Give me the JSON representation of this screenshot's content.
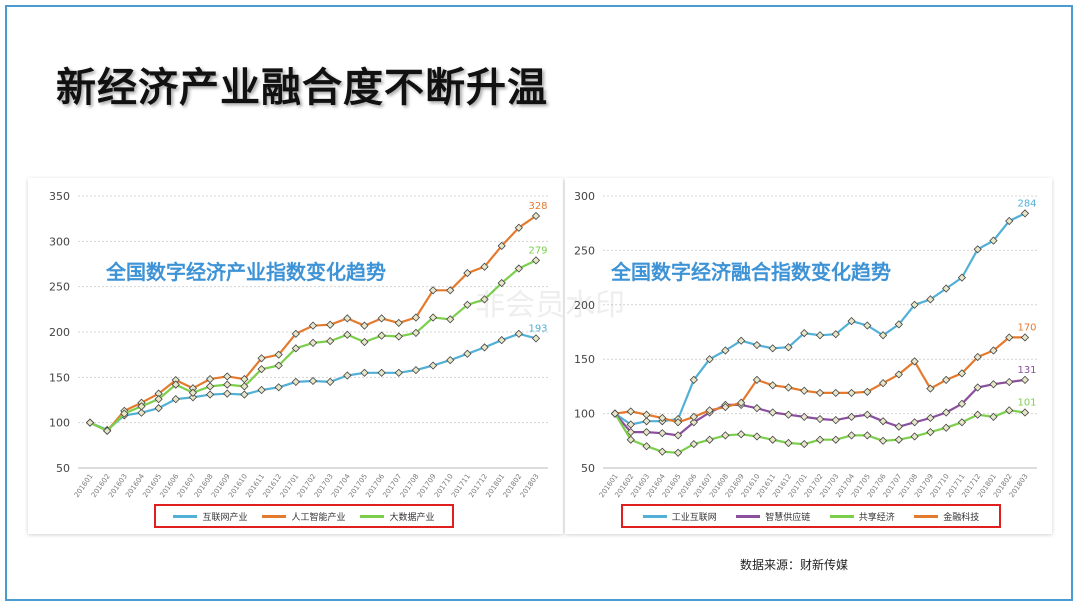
{
  "slide": {
    "title": "新经济产业融合度不断升温",
    "source": "数据来源：财新传媒",
    "watermark": "非会员水印"
  },
  "chart_data": [
    {
      "type": "line",
      "title": "全国数字经济产业指数变化趋势",
      "ylim": [
        50,
        350
      ],
      "yticks": [
        50,
        100,
        150,
        200,
        250,
        300,
        350
      ],
      "grid": true,
      "legend_position": "bottom",
      "categories": [
        "201601",
        "201602",
        "201603",
        "201604",
        "201605",
        "201606",
        "201607",
        "201608",
        "201609",
        "201610",
        "201611",
        "201612",
        "201701",
        "201702",
        "201703",
        "201704",
        "201705",
        "201706",
        "201707",
        "201708",
        "201709",
        "201710",
        "201711",
        "201712",
        "201801",
        "201802",
        "201803"
      ],
      "series": [
        {
          "name": "互联网产业",
          "color": "#52afd6",
          "end_label": "193",
          "values": [
            100,
            92,
            108,
            111,
            116,
            126,
            128,
            131,
            132,
            131,
            136,
            139,
            145,
            146,
            145,
            152,
            155,
            155,
            155,
            158,
            163,
            169,
            176,
            183,
            191,
            198,
            193
          ]
        },
        {
          "name": "人工智能产业",
          "color": "#e47a2e",
          "end_label": "328",
          "values": [
            100,
            91,
            113,
            122,
            132,
            147,
            138,
            148,
            151,
            148,
            171,
            175,
            198,
            207,
            208,
            215,
            207,
            215,
            210,
            216,
            246,
            246,
            265,
            272,
            295,
            315,
            328
          ]
        },
        {
          "name": "大数据产业",
          "color": "#7ccf4c",
          "end_label": "279",
          "values": [
            100,
            91,
            110,
            118,
            126,
            142,
            133,
            140,
            142,
            140,
            159,
            163,
            182,
            188,
            190,
            197,
            189,
            196,
            195,
            199,
            216,
            214,
            230,
            236,
            254,
            270,
            279
          ]
        }
      ]
    },
    {
      "type": "line",
      "title": "全国数字经济融合指数变化趋势",
      "ylim": [
        50,
        300
      ],
      "yticks": [
        50,
        100,
        150,
        200,
        250,
        300
      ],
      "grid": true,
      "legend_position": "bottom",
      "categories": [
        "201601",
        "201602",
        "201603",
        "201604",
        "201605",
        "201606",
        "201607",
        "201608",
        "201609",
        "201610",
        "201611",
        "201612",
        "201701",
        "201702",
        "201703",
        "201704",
        "201705",
        "201706",
        "201707",
        "201708",
        "201709",
        "201710",
        "201711",
        "201712",
        "201801",
        "201802",
        "201803"
      ],
      "series": [
        {
          "name": "工业互联网",
          "color": "#52afd6",
          "end_label": "284",
          "values": [
            100,
            90,
            93,
            93,
            95,
            131,
            150,
            158,
            167,
            163,
            160,
            161,
            174,
            172,
            173,
            185,
            181,
            172,
            182,
            200,
            205,
            215,
            225,
            251,
            259,
            277,
            284
          ]
        },
        {
          "name": "智慧供应链",
          "color": "#8b4f9e",
          "end_label": "131",
          "values": [
            100,
            83,
            83,
            82,
            80,
            92,
            101,
            108,
            108,
            105,
            101,
            99,
            97,
            95,
            94,
            97,
            99,
            93,
            88,
            92,
            96,
            101,
            109,
            124,
            127,
            129,
            131
          ]
        },
        {
          "name": "共享经济",
          "color": "#7ccf4c",
          "end_label": "101",
          "values": [
            100,
            76,
            70,
            65,
            64,
            72,
            76,
            80,
            81,
            79,
            76,
            73,
            72,
            76,
            76,
            80,
            80,
            75,
            76,
            79,
            83,
            87,
            92,
            99,
            97,
            103,
            101
          ]
        },
        {
          "name": "金融科技",
          "color": "#e47a2e",
          "end_label": "170",
          "values": [
            100,
            102,
            99,
            96,
            92,
            97,
            103,
            106,
            110,
            131,
            126,
            124,
            121,
            119,
            119,
            119,
            120,
            128,
            136,
            148,
            123,
            131,
            137,
            152,
            158,
            170,
            170
          ]
        }
      ]
    }
  ]
}
